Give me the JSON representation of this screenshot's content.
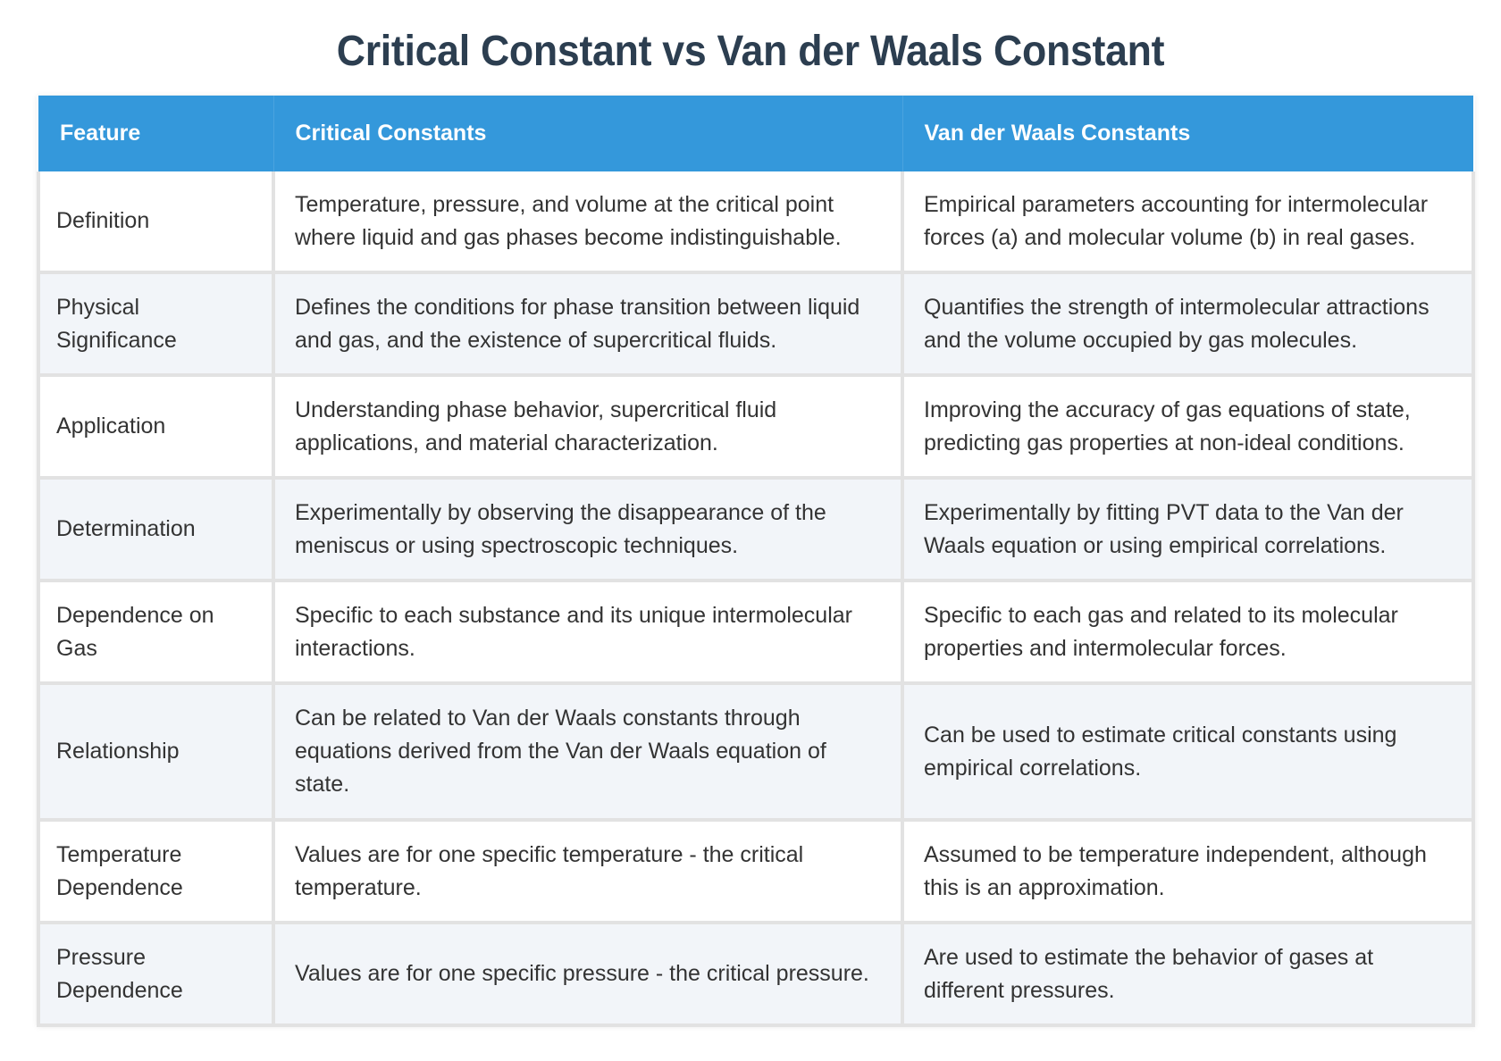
{
  "title": "Critical Constant vs Van der Waals Constant",
  "table": {
    "headers": [
      "Feature",
      "Critical Constants",
      "Van der Waals Constants"
    ],
    "rows": [
      {
        "feature": "Definition",
        "critical": "Temperature, pressure, and volume at the critical point where liquid and gas phases become indistinguishable.",
        "vdw": "Empirical parameters accounting for intermolecular forces (a) and molecular volume (b) in real gases."
      },
      {
        "feature": "Physical Significance",
        "critical": "Defines the conditions for phase transition between liquid and gas, and the existence of supercritical fluids.",
        "vdw": "Quantifies the strength of intermolecular attractions and the volume occupied by gas molecules."
      },
      {
        "feature": "Application",
        "critical": "Understanding phase behavior, supercritical fluid applications, and material characterization.",
        "vdw": "Improving the accuracy of gas equations of state, predicting gas properties at non-ideal conditions."
      },
      {
        "feature": "Determination",
        "critical": "Experimentally by observing the disappearance of the meniscus or using spectroscopic techniques.",
        "vdw": "Experimentally by fitting PVT data to the Van der Waals equation or using empirical correlations."
      },
      {
        "feature": "Dependence on Gas",
        "critical": "Specific to each substance and its unique intermolecular interactions.",
        "vdw": "Specific to each gas and related to its molecular properties and intermolecular forces."
      },
      {
        "feature": "Relationship",
        "critical": "Can be related to Van der Waals constants through equations derived from the Van der Waals equation of state.",
        "vdw": "Can be used to estimate critical constants using empirical correlations."
      },
      {
        "feature": "Temperature Dependence",
        "critical": "Values are for one specific temperature - the critical temperature.",
        "vdw": "Assumed to be temperature independent, although this is an approximation."
      },
      {
        "feature": "Pressure Dependence",
        "critical": "Values are for one specific pressure - the critical pressure.",
        "vdw": "Are used to estimate the behavior of gases at different pressures."
      }
    ]
  },
  "colors": {
    "header_bg": "#3498db",
    "title": "#2c3e50",
    "row_alt_bg": "#f2f5f9",
    "border": "#e2e2e2"
  }
}
